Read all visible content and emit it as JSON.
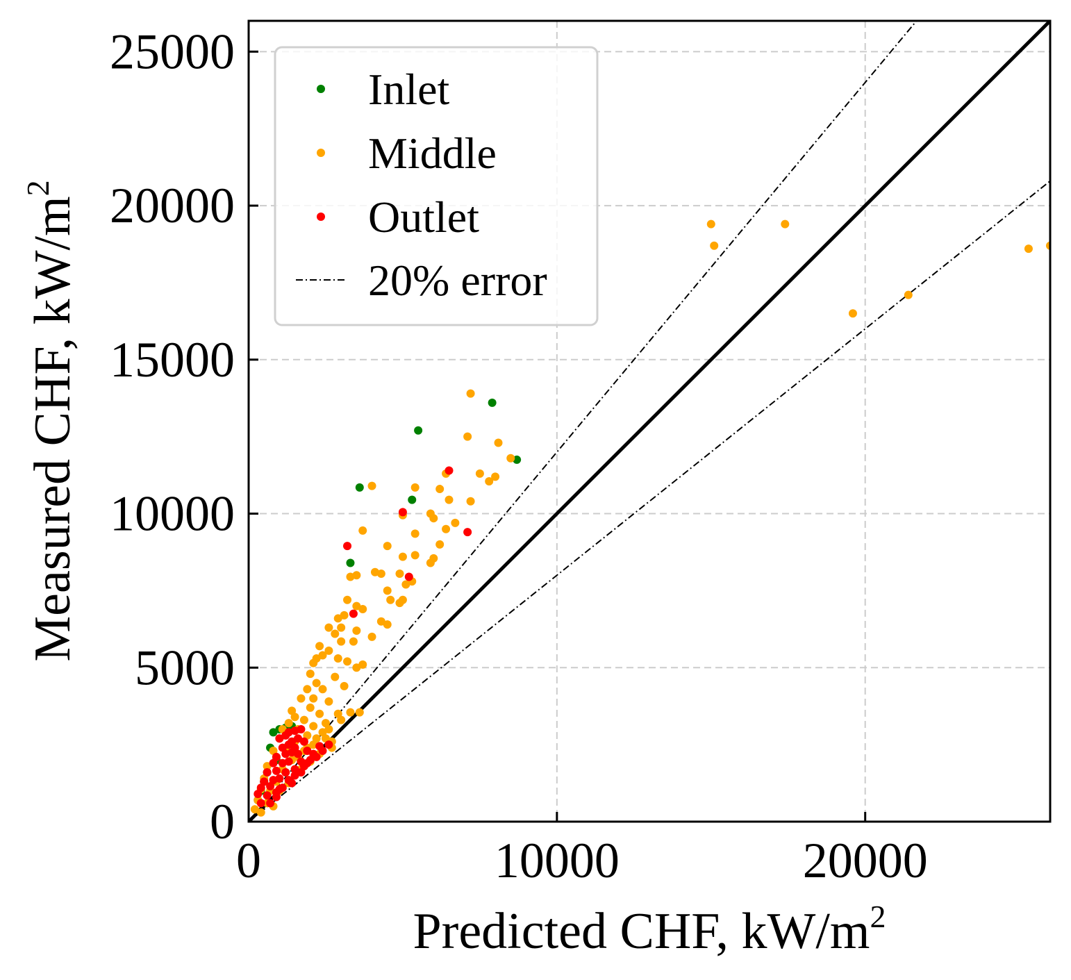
{
  "chart_data": {
    "type": "scatter",
    "xlabel": "Predicted CHF, kW/m",
    "ylabel": "Measured CHF, kW/m",
    "label_superscript": "2",
    "xlim": [
      0,
      26000
    ],
    "ylim": [
      0,
      26000
    ],
    "xticks": [
      0,
      10000,
      20000
    ],
    "yticks": [
      0,
      5000,
      10000,
      15000,
      20000,
      25000
    ],
    "grid": true,
    "legend_position": "top-left",
    "colors": {
      "inlet": "#008000",
      "middle": "#ffa500",
      "outlet": "#ff0000",
      "line": "#000000"
    },
    "reference_lines": [
      {
        "name": "ideal",
        "slope": 1.0,
        "style": "solid"
      },
      {
        "name": "20% error",
        "slope": 1.2,
        "style": "dashdot"
      },
      {
        "name": "20% error",
        "slope": 0.8,
        "style": "dashdot"
      }
    ],
    "series": [
      {
        "name": "Inlet",
        "color": "#008000",
        "points": [
          [
            7900,
            13600
          ],
          [
            5500,
            12700
          ],
          [
            3600,
            10850
          ],
          [
            5300,
            10450
          ],
          [
            8700,
            11750
          ],
          [
            3300,
            8400
          ],
          [
            700,
            2400
          ],
          [
            800,
            2900
          ],
          [
            1000,
            3000
          ],
          [
            1200,
            3050
          ],
          [
            1400,
            3100
          ],
          [
            500,
            1300
          ],
          [
            400,
            1000
          ],
          [
            300,
            700
          ],
          [
            600,
            1600
          ],
          [
            900,
            2000
          ]
        ]
      },
      {
        "name": "Middle",
        "color": "#ffa500",
        "points": [
          [
            15000,
            19400
          ],
          [
            15100,
            18700
          ],
          [
            17400,
            19400
          ],
          [
            19600,
            16500
          ],
          [
            21400,
            17100
          ],
          [
            25300,
            18600
          ],
          [
            26000,
            18700
          ],
          [
            7200,
            13900
          ],
          [
            7100,
            12500
          ],
          [
            8100,
            12300
          ],
          [
            8500,
            11800
          ],
          [
            7500,
            11300
          ],
          [
            8000,
            11200
          ],
          [
            7800,
            11050
          ],
          [
            4000,
            10900
          ],
          [
            5400,
            10850
          ],
          [
            6400,
            11300
          ],
          [
            6200,
            10800
          ],
          [
            6500,
            10450
          ],
          [
            7200,
            10400
          ],
          [
            5900,
            10000
          ],
          [
            6000,
            9850
          ],
          [
            5000,
            9950
          ],
          [
            6700,
            9700
          ],
          [
            6400,
            9500
          ],
          [
            3700,
            9450
          ],
          [
            5400,
            9350
          ],
          [
            6200,
            9000
          ],
          [
            4500,
            8950
          ],
          [
            5400,
            8650
          ],
          [
            5000,
            8600
          ],
          [
            6000,
            8550
          ],
          [
            5900,
            8400
          ],
          [
            4100,
            8100
          ],
          [
            4300,
            8050
          ],
          [
            4900,
            8050
          ],
          [
            3300,
            7950
          ],
          [
            3500,
            8000
          ],
          [
            5300,
            7800
          ],
          [
            5100,
            7700
          ],
          [
            4500,
            7500
          ],
          [
            4600,
            7200
          ],
          [
            4900,
            7100
          ],
          [
            5000,
            7200
          ],
          [
            3200,
            7200
          ],
          [
            3500,
            7000
          ],
          [
            3700,
            6900
          ],
          [
            3100,
            6700
          ],
          [
            2900,
            6600
          ],
          [
            4300,
            6500
          ],
          [
            4500,
            6400
          ],
          [
            3000,
            6300
          ],
          [
            2600,
            6300
          ],
          [
            3500,
            6200
          ],
          [
            2800,
            6100
          ],
          [
            4000,
            6000
          ],
          [
            3000,
            5850
          ],
          [
            3400,
            5850
          ],
          [
            2300,
            5700
          ],
          [
            2600,
            5550
          ],
          [
            2400,
            5400
          ],
          [
            2900,
            5300
          ],
          [
            2200,
            5300
          ],
          [
            2100,
            5150
          ],
          [
            3200,
            5200
          ],
          [
            3700,
            5100
          ],
          [
            3500,
            5000
          ],
          [
            2000,
            4800
          ],
          [
            2800,
            4700
          ],
          [
            2200,
            4500
          ],
          [
            2400,
            4300
          ],
          [
            3100,
            4400
          ],
          [
            1900,
            4300
          ],
          [
            1700,
            4000
          ],
          [
            2100,
            4000
          ],
          [
            2600,
            3900
          ],
          [
            1400,
            3600
          ],
          [
            2000,
            3700
          ],
          [
            2300,
            3500
          ],
          [
            2900,
            3500
          ],
          [
            3300,
            3550
          ],
          [
            3600,
            3550
          ],
          [
            1500,
            3400
          ],
          [
            1800,
            3300
          ],
          [
            2500,
            3200
          ],
          [
            2100,
            3100
          ],
          [
            1300,
            3200
          ],
          [
            1100,
            3000
          ],
          [
            1600,
            3000
          ],
          [
            2400,
            2900
          ],
          [
            1900,
            2800
          ],
          [
            2200,
            2700
          ],
          [
            1000,
            2700
          ],
          [
            1500,
            2600
          ],
          [
            2700,
            2600
          ],
          [
            1200,
            2400
          ],
          [
            800,
            2300
          ],
          [
            1800,
            2300
          ],
          [
            2300,
            2200
          ],
          [
            900,
            2100
          ],
          [
            1400,
            2000
          ],
          [
            2000,
            1950
          ],
          [
            600,
            1800
          ],
          [
            1100,
            1700
          ],
          [
            1700,
            1700
          ],
          [
            500,
            1400
          ],
          [
            900,
            1300
          ],
          [
            1300,
            1250
          ],
          [
            400,
            1050
          ],
          [
            700,
            1000
          ],
          [
            1000,
            1000
          ],
          [
            300,
            700
          ],
          [
            600,
            600
          ],
          [
            800,
            500
          ],
          [
            200,
            400
          ],
          [
            400,
            300
          ],
          [
            1200,
            1600
          ],
          [
            1600,
            2100
          ],
          [
            2100,
            2500
          ],
          [
            2500,
            2700
          ],
          [
            2700,
            2400
          ],
          [
            1900,
            2400
          ],
          [
            3000,
            3300
          ],
          [
            2600,
            3000
          ]
        ]
      },
      {
        "name": "Outlet",
        "color": "#ff0000",
        "points": [
          [
            6500,
            11400
          ],
          [
            5000,
            10050
          ],
          [
            7100,
            9400
          ],
          [
            3200,
            8950
          ],
          [
            5200,
            7950
          ],
          [
            3400,
            6750
          ],
          [
            1000,
            2700
          ],
          [
            1200,
            2800
          ],
          [
            1300,
            2900
          ],
          [
            1500,
            2950
          ],
          [
            1700,
            3000
          ],
          [
            1400,
            2600
          ],
          [
            1600,
            2700
          ],
          [
            1100,
            2400
          ],
          [
            1300,
            2500
          ],
          [
            1500,
            2400
          ],
          [
            1800,
            2600
          ],
          [
            900,
            2100
          ],
          [
            1200,
            2200
          ],
          [
            1400,
            2250
          ],
          [
            1600,
            2200
          ],
          [
            1900,
            2300
          ],
          [
            800,
            1900
          ],
          [
            1100,
            1900
          ],
          [
            1300,
            1950
          ],
          [
            1700,
            1950
          ],
          [
            600,
            1600
          ],
          [
            900,
            1650
          ],
          [
            1200,
            1600
          ],
          [
            1500,
            1700
          ],
          [
            1800,
            1800
          ],
          [
            500,
            1300
          ],
          [
            800,
            1350
          ],
          [
            1000,
            1400
          ],
          [
            1300,
            1350
          ],
          [
            400,
            1100
          ],
          [
            700,
            1150
          ],
          [
            1000,
            1050
          ],
          [
            300,
            900
          ],
          [
            600,
            850
          ],
          [
            900,
            800
          ],
          [
            400,
            600
          ],
          [
            700,
            600
          ],
          [
            2000,
            2000
          ],
          [
            2200,
            2100
          ],
          [
            2400,
            2300
          ],
          [
            2600,
            2500
          ],
          [
            2100,
            2200
          ],
          [
            2300,
            2450
          ],
          [
            1900,
            1900
          ],
          [
            1700,
            1600
          ],
          [
            1500,
            1500
          ],
          [
            1400,
            1250
          ],
          [
            1100,
            1100
          ],
          [
            900,
            950
          ]
        ]
      }
    ]
  },
  "legend": {
    "items": [
      {
        "label": "Inlet",
        "kind": "marker",
        "color": "#008000"
      },
      {
        "label": "Middle",
        "kind": "marker",
        "color": "#ffa500"
      },
      {
        "label": "Outlet",
        "kind": "marker",
        "color": "#ff0000"
      },
      {
        "label": "20% error",
        "kind": "line",
        "color": "#000000"
      }
    ]
  }
}
